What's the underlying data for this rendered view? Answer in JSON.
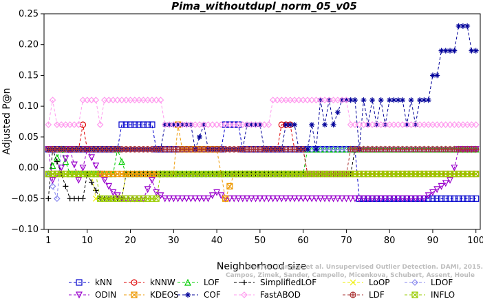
{
  "chart_data": {
    "type": "line",
    "title": "Pima_withoutdupl_norm_05_v05",
    "xlabel": "Neighborhood size",
    "ylabel": "Adjusted P@n",
    "xlim": [
      0,
      101
    ],
    "ylim": [
      -0.1,
      0.25
    ],
    "x_ticks": [
      "1",
      "10",
      "20",
      "30",
      "40",
      "50",
      "60",
      "70",
      "80",
      "90",
      "100"
    ],
    "y_ticks": [
      "−0.10",
      "−0.05",
      "0.00",
      "0.05",
      "0.10",
      "0.15",
      "0.20",
      "0.25"
    ],
    "grid": false,
    "legend_placement": "bottom",
    "watermark": [
      "Source: Campos et al. Unsupervised Outlier Detection. DAMI, 2015.",
      "Campos, Zimek, Sander, Campello, Micenkova, Schubert, Assent, Houle"
    ],
    "series": [
      {
        "name": "kNN",
        "color": "#0000cc",
        "marker": "square",
        "segments": [
          [
            1,
            0.03
          ],
          [
            17,
            0.03
          ],
          [
            18,
            0.07
          ],
          [
            25,
            0.07
          ],
          [
            26,
            0.03
          ],
          [
            41,
            0.03
          ],
          [
            42,
            0.07
          ],
          [
            45,
            0.07
          ],
          [
            46,
            0.03
          ],
          [
            72,
            0.03
          ],
          [
            73,
            -0.05
          ],
          [
            100,
            -0.05
          ]
        ]
      },
      {
        "name": "kNNW",
        "color": "#dd0000",
        "marker": "circle",
        "segments": [
          [
            1,
            0.03
          ],
          [
            8,
            0.03
          ],
          [
            9,
            0.07
          ],
          [
            10,
            0.03
          ],
          [
            54,
            0.03
          ],
          [
            55,
            0.07
          ],
          [
            57,
            0.07
          ],
          [
            58,
            0.03
          ],
          [
            60,
            0.03
          ],
          [
            61,
            -0.01
          ],
          [
            100,
            -0.01
          ]
        ]
      },
      {
        "name": "LOF",
        "color": "#00cc00",
        "marker": "triangle",
        "segments": [
          [
            1,
            -0.01
          ],
          [
            4,
            0.03
          ],
          [
            6,
            -0.01
          ],
          [
            16,
            -0.01
          ],
          [
            17,
            0.03
          ],
          [
            19,
            -0.01
          ],
          [
            60,
            -0.01
          ],
          [
            61,
            0.03
          ],
          [
            100,
            0.03
          ]
        ]
      },
      {
        "name": "SimplifiedLOF",
        "color": "#000000",
        "marker": "plus",
        "segments": [
          [
            1,
            -0.05
          ],
          [
            2,
            0.03
          ],
          [
            4,
            -0.01
          ],
          [
            6,
            -0.05
          ],
          [
            9,
            -0.05
          ],
          [
            10,
            -0.01
          ],
          [
            13,
            -0.05
          ],
          [
            18,
            -0.05
          ],
          [
            19,
            -0.01
          ],
          [
            71,
            -0.01
          ],
          [
            72,
            0.03
          ],
          [
            100,
            0.03
          ]
        ]
      },
      {
        "name": "LoOP",
        "color": "#eeee00",
        "marker": "x",
        "segments": [
          [
            1,
            -0.01
          ],
          [
            11,
            -0.01
          ],
          [
            12,
            -0.05
          ],
          [
            18,
            -0.05
          ],
          [
            19,
            -0.01
          ],
          [
            100,
            -0.01
          ]
        ]
      },
      {
        "name": "LDOF",
        "color": "#8888ee",
        "marker": "diamond",
        "segments": [
          [
            1,
            -0.01
          ],
          [
            3,
            -0.05
          ],
          [
            4,
            0.03
          ],
          [
            100,
            0.03
          ]
        ]
      },
      {
        "name": "ODIN",
        "color": "#9900cc",
        "marker": "triangle-down",
        "segments": [
          [
            1,
            0.03
          ],
          [
            2,
            -0.02
          ],
          [
            4,
            0.0
          ],
          [
            6,
            0.03
          ],
          [
            8,
            -0.02
          ],
          [
            9,
            0.0
          ],
          [
            10,
            0.03
          ],
          [
            13,
            -0.01
          ],
          [
            16,
            -0.04
          ],
          [
            18,
            -0.05
          ],
          [
            23,
            -0.05
          ],
          [
            25,
            -0.02
          ],
          [
            26,
            -0.04
          ],
          [
            28,
            -0.05
          ],
          [
            38,
            -0.05
          ],
          [
            40,
            -0.04
          ],
          [
            42,
            -0.05
          ],
          [
            55,
            -0.05
          ],
          [
            59,
            -0.05
          ],
          [
            88,
            -0.05
          ],
          [
            90,
            -0.04
          ],
          [
            92,
            -0.03
          ],
          [
            94,
            -0.02
          ],
          [
            95,
            0.0
          ],
          [
            96,
            0.03
          ],
          [
            100,
            0.03
          ]
        ]
      },
      {
        "name": "KDEOS",
        "color": "#ee9900",
        "marker": "square-x",
        "segments": [
          [
            1,
            -0.01
          ],
          [
            30,
            -0.01
          ],
          [
            31,
            0.07
          ],
          [
            32,
            0.03
          ],
          [
            40,
            0.03
          ],
          [
            42,
            -0.05
          ],
          [
            44,
            -0.01
          ],
          [
            100,
            -0.01
          ]
        ]
      },
      {
        "name": "COF",
        "color": "#000099",
        "marker": "star",
        "segments": [
          [
            1,
            0.03
          ],
          [
            27,
            0.03
          ],
          [
            28,
            0.07
          ],
          [
            34,
            0.07
          ],
          [
            35,
            0.03
          ],
          [
            37,
            0.07
          ],
          [
            38,
            0.03
          ],
          [
            46,
            0.03
          ],
          [
            47,
            0.07
          ],
          [
            50,
            0.07
          ],
          [
            51,
            0.03
          ],
          [
            55,
            0.03
          ],
          [
            56,
            0.07
          ],
          [
            58,
            0.07
          ],
          [
            59,
            0.03
          ],
          [
            61,
            0.03
          ],
          [
            62,
            0.07
          ],
          [
            63,
            0.03
          ],
          [
            64,
            0.11
          ],
          [
            65,
            0.07
          ],
          [
            66,
            0.11
          ],
          [
            67,
            0.07
          ],
          [
            69,
            0.11
          ],
          [
            72,
            0.11
          ],
          [
            73,
            0.03
          ],
          [
            74,
            0.11
          ],
          [
            75,
            0.07
          ],
          [
            76,
            0.11
          ],
          [
            77,
            0.07
          ],
          [
            78,
            0.11
          ],
          [
            79,
            0.07
          ],
          [
            80,
            0.11
          ],
          [
            83,
            0.11
          ],
          [
            84,
            0.07
          ],
          [
            85,
            0.11
          ],
          [
            86,
            0.07
          ],
          [
            87,
            0.11
          ],
          [
            89,
            0.11
          ],
          [
            90,
            0.15
          ],
          [
            91,
            0.15
          ],
          [
            92,
            0.19
          ],
          [
            95,
            0.19
          ],
          [
            96,
            0.23
          ],
          [
            98,
            0.23
          ],
          [
            99,
            0.19
          ],
          [
            100,
            0.19
          ]
        ]
      },
      {
        "name": "FastABOD",
        "color": "#ff99ee",
        "marker": "diamond",
        "segments": [
          [
            1,
            0.07
          ],
          [
            2,
            0.11
          ],
          [
            3,
            0.07
          ],
          [
            8,
            0.07
          ],
          [
            9,
            0.11
          ],
          [
            12,
            0.11
          ],
          [
            13,
            0.07
          ],
          [
            14,
            0.11
          ],
          [
            27,
            0.11
          ],
          [
            28,
            0.07
          ],
          [
            52,
            0.07
          ],
          [
            53,
            0.11
          ],
          [
            70,
            0.11
          ],
          [
            71,
            0.07
          ],
          [
            100,
            0.07
          ]
        ]
      },
      {
        "name": "LDF",
        "color": "#aa3333",
        "marker": "circle-plus",
        "segments": [
          [
            1,
            0.03
          ],
          [
            60,
            0.03
          ],
          [
            61,
            -0.01
          ],
          [
            70,
            -0.01
          ],
          [
            71,
            0.03
          ],
          [
            100,
            0.03
          ]
        ]
      },
      {
        "name": "INFLO",
        "color": "#99cc00",
        "marker": "square-x",
        "segments": [
          [
            1,
            -0.01
          ],
          [
            12,
            -0.01
          ],
          [
            13,
            -0.05
          ],
          [
            26,
            -0.05
          ],
          [
            27,
            -0.01
          ],
          [
            100,
            -0.01
          ]
        ]
      }
    ]
  }
}
